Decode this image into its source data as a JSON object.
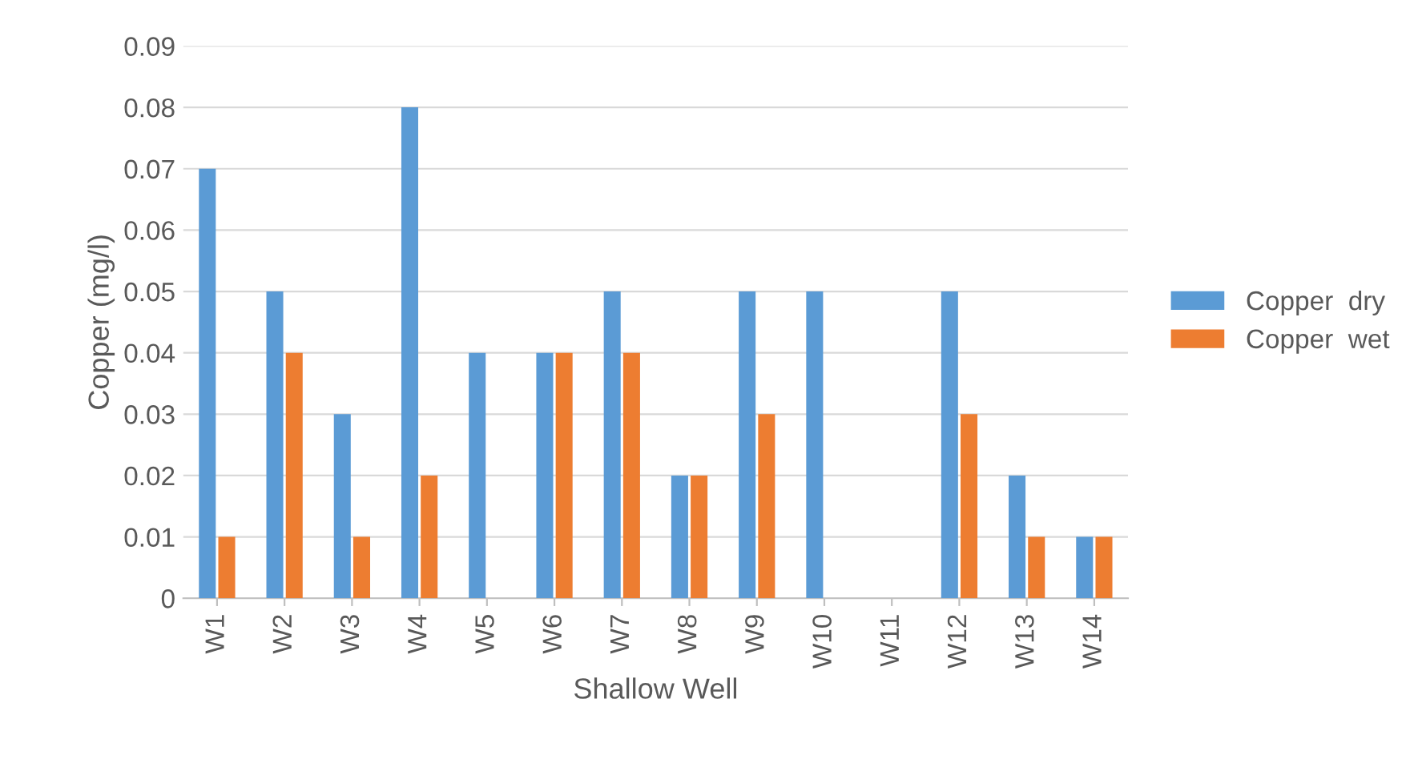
{
  "chart_data": {
    "type": "bar",
    "xlabel": "Shallow Well",
    "ylabel": "Copper (mg/l)",
    "categories": [
      "W1",
      "W2",
      "W3",
      "W4",
      "W5",
      "W6",
      "W7",
      "W8",
      "W9",
      "W10",
      "W11",
      "W12",
      "W13",
      "W14"
    ],
    "series": [
      {
        "name": "Copper  dry",
        "color": "#5b9bd5",
        "values": [
          0.07,
          0.05,
          0.03,
          0.08,
          0.04,
          0.04,
          0.05,
          0.02,
          0.05,
          0.05,
          0,
          0.05,
          0.02,
          0.01
        ]
      },
      {
        "name": "Copper  wet",
        "color": "#ed7d31",
        "values": [
          0.01,
          0.04,
          0.01,
          0.02,
          0,
          0.04,
          0.04,
          0.02,
          0.03,
          0,
          0,
          0.03,
          0.01,
          0.01
        ]
      }
    ],
    "ylim": [
      0,
      0.09
    ],
    "yticks": [
      0,
      0.01,
      0.02,
      0.03,
      0.04,
      0.05,
      0.06,
      0.07,
      0.08,
      0.09
    ],
    "grid": "y",
    "legend": "right"
  }
}
